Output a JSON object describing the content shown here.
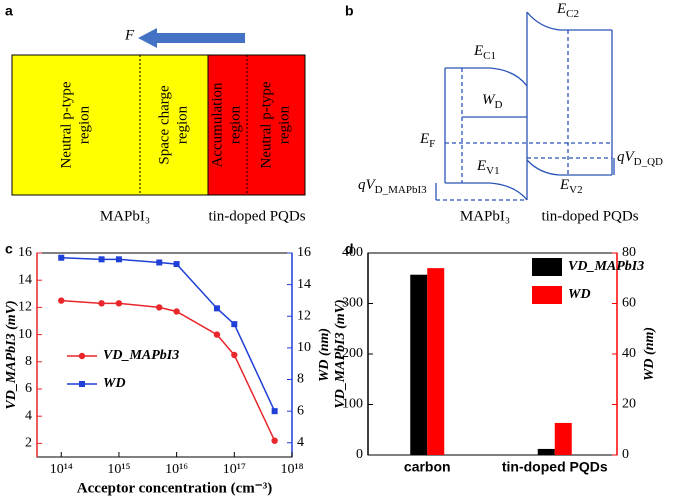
{
  "panel_a": {
    "label": "a",
    "force": "F",
    "regions": [
      {
        "lines": [
          "Neutral p-type",
          "region"
        ]
      },
      {
        "lines": [
          "Space charge",
          "region"
        ]
      },
      {
        "lines": [
          "Accumulation",
          "region"
        ]
      },
      {
        "lines": [
          "Neutral p-type",
          "region"
        ]
      }
    ],
    "materials": [
      "MAPbI₃",
      "tin-doped PQDs"
    ]
  },
  "panel_b": {
    "label": "b",
    "levels": [
      {
        "symbol": "E",
        "sub": "C2"
      },
      {
        "symbol": "E",
        "sub": "C1"
      },
      {
        "symbol": "W",
        "sub": "D"
      },
      {
        "symbol": "E",
        "sub": "F"
      },
      {
        "symbol": "E",
        "sub": "V1"
      },
      {
        "symbol": "E",
        "sub": "V2"
      },
      {
        "symbol": "qV",
        "sub": "D_QD"
      },
      {
        "symbol": "qV",
        "sub": "D_MAPbI3"
      }
    ],
    "materials": [
      "MAPbI₃",
      "tin-doped PQDs"
    ]
  },
  "chart_data": [
    {
      "type": "line",
      "label": "c",
      "xscale": "log",
      "x_label": "Acceptor concentration (cm⁻³)",
      "y_label": "VD_MAPbI3 (mV)",
      "y2_label": "WD (nm)",
      "x": [
        100000000000000.0,
        500000000000000.0,
        1000000000000000.0,
        5000000000000000.0,
        1e+16,
        5e+16,
        1e+17,
        5e+17
      ],
      "series": [
        {
          "name": "VD_MAPbI3",
          "color": "#e8262b",
          "marker": "circle",
          "values": [
            12.5,
            12.3,
            12.3,
            12.0,
            11.7,
            10.0,
            8.5,
            2.2
          ]
        },
        {
          "name": "WD",
          "color": "#1f3fd6",
          "marker": "square",
          "axis": "y2",
          "values": [
            15.7,
            15.6,
            15.6,
            15.4,
            15.3,
            12.5,
            11.5,
            6.0
          ]
        }
      ],
      "xlim": [
        38000000000000.0,
        1e+18
      ],
      "xticks": [
        {
          "value": 100000000000000.0,
          "label": "10¹⁴"
        },
        {
          "value": 1000000000000000.0,
          "label": "10¹⁵"
        },
        {
          "value": 1e+16,
          "label": "10¹⁶"
        },
        {
          "value": 1e+17,
          "label": "10¹⁷"
        },
        {
          "value": 1e+18,
          "label": "10¹⁸"
        }
      ],
      "ylim": [
        1,
        16
      ],
      "yticks": [
        2,
        4,
        6,
        8,
        10,
        12,
        14,
        16
      ],
      "y2lim": [
        3.1,
        16
      ],
      "y2ticks": [
        4,
        6,
        8,
        10,
        12,
        14,
        16
      ],
      "legend": "left"
    },
    {
      "type": "bar",
      "label": "d",
      "y_label": "VD_MAPbI3 (mV)",
      "y2_label": "WD (nm)",
      "categories": [
        "carbon",
        "tin-doped PQDs"
      ],
      "series": [
        {
          "name": "VD_MAPbI3",
          "color": "#000000",
          "values": [
            357,
            12
          ]
        },
        {
          "name": "WD",
          "color": "#ff0000",
          "axis": "y2",
          "values": [
            74,
            12.7
          ]
        }
      ],
      "ylim": [
        0,
        400
      ],
      "yticks": [
        0,
        100,
        200,
        300,
        400
      ],
      "y2lim": [
        0,
        80
      ],
      "y2ticks": [
        0,
        20,
        40,
        60,
        80
      ],
      "legend": "upper right"
    }
  ]
}
